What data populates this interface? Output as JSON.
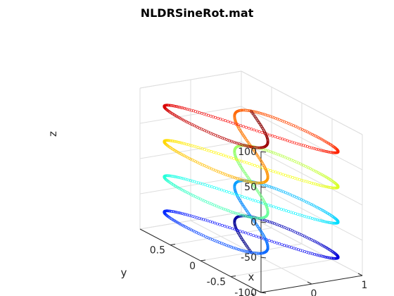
{
  "chart_data": {
    "type": "scatter",
    "projection": "3d",
    "title": "NLDRSineRot.mat",
    "xlabel": "x",
    "ylabel": "y",
    "zlabel": "z",
    "xlim": [
      -1,
      1
    ],
    "ylim": [
      -1,
      1
    ],
    "zlim": [
      -100,
      100
    ],
    "x_ticks": [
      {
        "value": -1,
        "label": "-1"
      },
      {
        "value": 0,
        "label": "0"
      },
      {
        "value": 1,
        "label": "1"
      }
    ],
    "y_ticks": [
      {
        "value": -1,
        "label": "-1"
      },
      {
        "value": -0.5,
        "label": "-0.5"
      },
      {
        "value": 0,
        "label": "0"
      },
      {
        "value": 0.5,
        "label": "0.5"
      }
    ],
    "z_ticks": [
      {
        "value": -100,
        "label": "-100"
      },
      {
        "value": -50,
        "label": "-50"
      },
      {
        "value": 0,
        "label": "0"
      },
      {
        "value": 50,
        "label": "50"
      },
      {
        "value": 100,
        "label": "100"
      }
    ],
    "grid": true,
    "colormap": "jet",
    "color_by": "z",
    "marker": "o",
    "curve": {
      "description_free": true,
      "x": "sin(t)",
      "y": "sin(t)cos(t)",
      "z_range": [
        -100,
        100
      ],
      "turns": 4
    },
    "colors": {
      "dark_red": "#800000",
      "red": "#ff2a00",
      "orange": "#ff8000",
      "yellow": "#ffea00",
      "green": "#80ff80",
      "cyan": "#00e5ff",
      "blue": "#0055ff",
      "dark_blue": "#00008f"
    }
  }
}
